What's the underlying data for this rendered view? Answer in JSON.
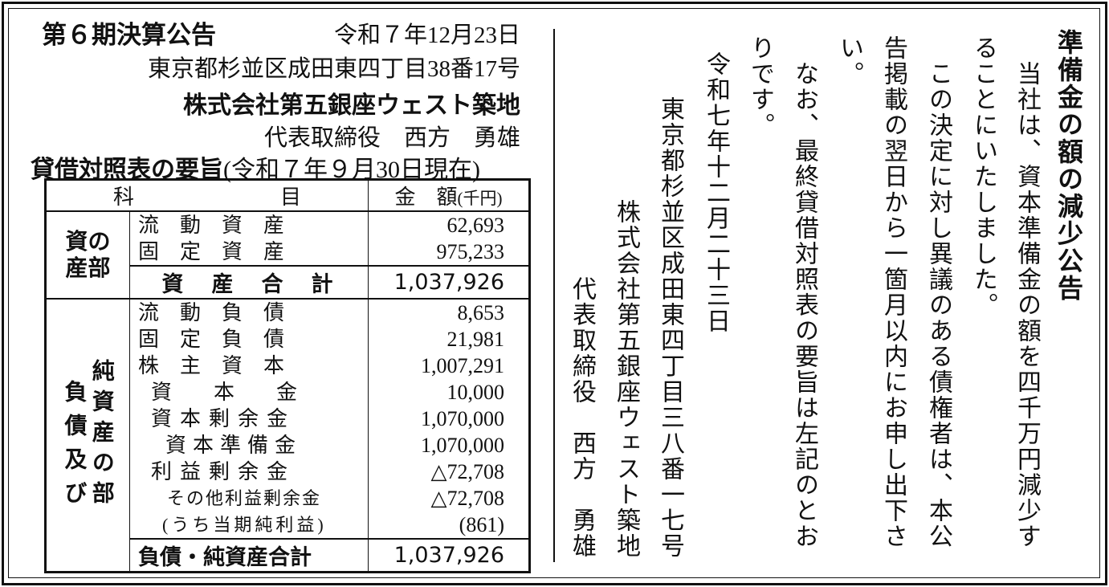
{
  "left": {
    "title": "第６期決算公告",
    "date": "令和７年12月23日",
    "address": "東京都杉並区成田東四丁目38番17号",
    "company": "株式会社第五銀座ウェスト築地",
    "representative": "代表取締役　西方　勇雄",
    "bs_heading": "貸借対照表の要旨",
    "bs_date": "(令和７年９月30日現在)"
  },
  "table": {
    "header": {
      "item": "科　　　　　　　目",
      "amount": "金　額",
      "unit": "(千円)"
    },
    "assets": {
      "section": [
        "資の",
        "産部"
      ],
      "rows": [
        {
          "label": "流　動　資　産",
          "value": "62,693"
        },
        {
          "label": "固　定　資　産",
          "value": "975,233"
        }
      ],
      "total": {
        "label": "資　産　合　計",
        "value": "1,037,926"
      }
    },
    "liabilities": {
      "section_outer": "負債及び",
      "section_inner": "純資産の部",
      "rows": [
        {
          "label": "流　動　負　債",
          "value": "8,653"
        },
        {
          "label": "固　定　負　債",
          "value": "21,981"
        },
        {
          "label": "株　主　資　本",
          "value": "1,007,291"
        },
        {
          "label": "資　　本　　金",
          "value": "10,000"
        },
        {
          "label": "資本剰余金",
          "value": "1,070,000"
        },
        {
          "label": "資本準備金",
          "value": "1,070,000"
        },
        {
          "label": "利益剰余金",
          "value": "△72,708"
        },
        {
          "label": "その他利益剰余金",
          "value": "△72,708"
        },
        {
          "label": "(うち当期純利益)",
          "value": "(861)"
        }
      ],
      "total": {
        "label": "負債・純資産合計",
        "value": "1,037,926"
      }
    }
  },
  "right": {
    "title": "準備金の額の減少公告",
    "body": [
      "　当社は、資本準備金の額を四千万円減少す",
      "ることにいたしました。",
      "　この決定に対し異議のある債権者は、本公",
      "告掲載の翌日から一箇月以内にお申し出下さ",
      "い。",
      "　なお、最終貸借対照表の要旨は左記のとお",
      "りです。"
    ],
    "date": "令和七年十二月二十三日",
    "address": "東京都杉並区成田東四丁目三八番一七号",
    "company": "株式会社第五銀座ウェスト築地",
    "representative": "代表取締役　西方　勇雄"
  }
}
